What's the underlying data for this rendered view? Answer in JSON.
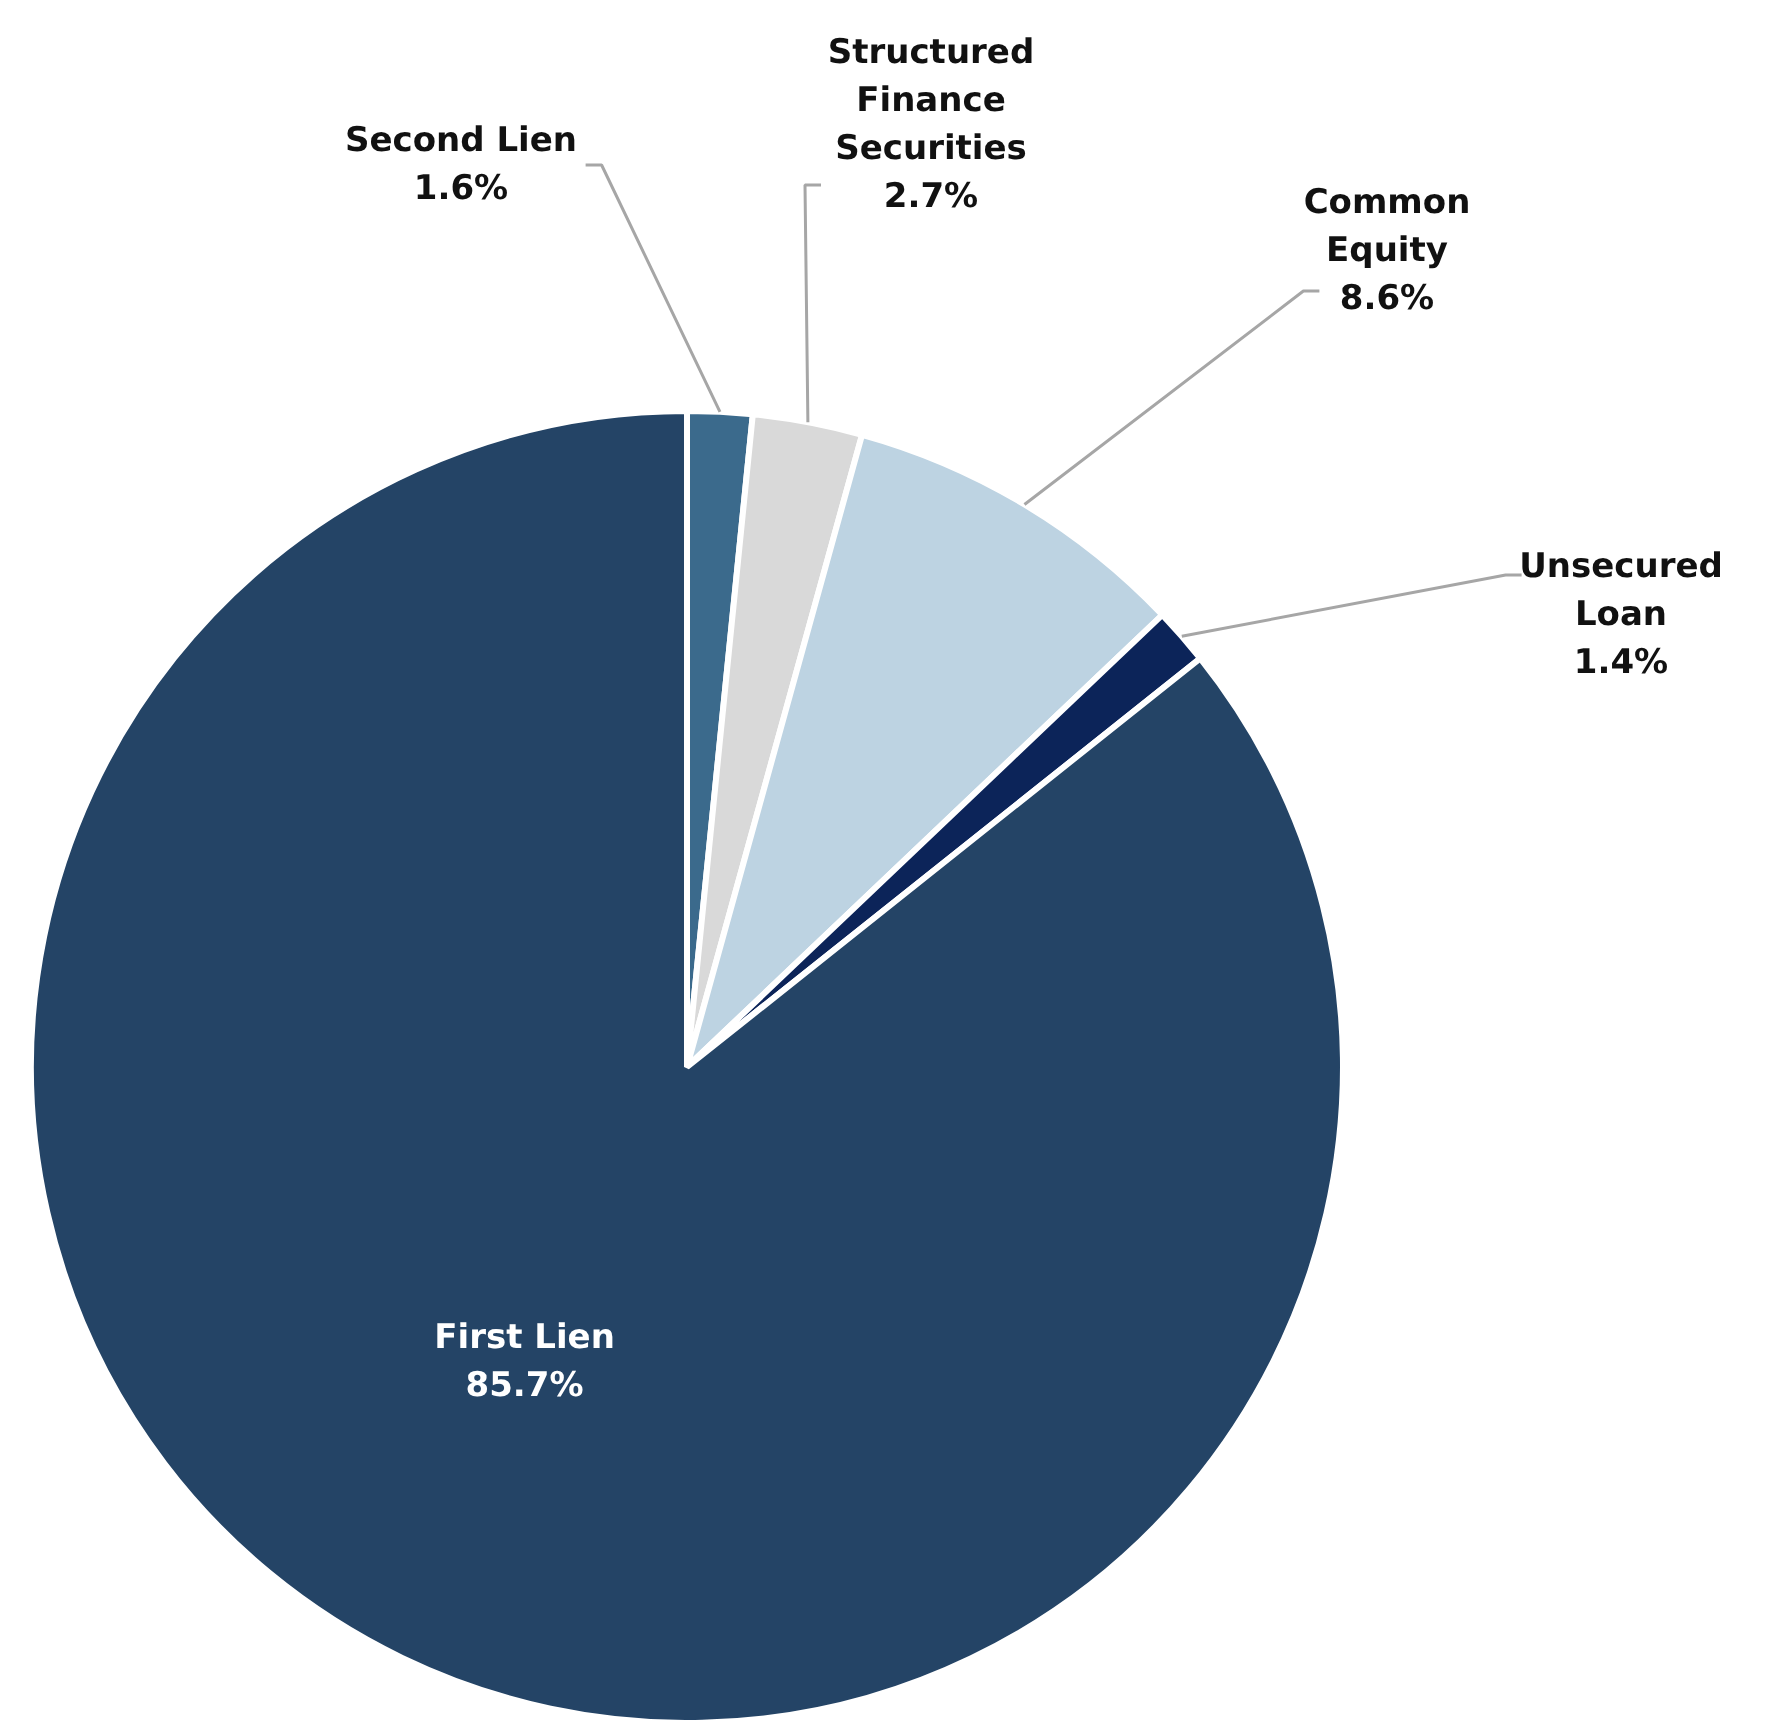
{
  "chart_data": {
    "type": "pie",
    "categories": [
      "Second Lien",
      "Structured Finance Securities",
      "Common Equity",
      "Unsecured Loan",
      "First Lien"
    ],
    "values": [
      1.6,
      2.7,
      8.6,
      1.4,
      85.7
    ],
    "colors": [
      "#3b6a8c",
      "#d9d9d9",
      "#bdd3e2",
      "#0c2459",
      "#244466"
    ],
    "value_labels": [
      "1.6%",
      "2.7%",
      "8.6%",
      "1.4%",
      "85.7%"
    ]
  }
}
